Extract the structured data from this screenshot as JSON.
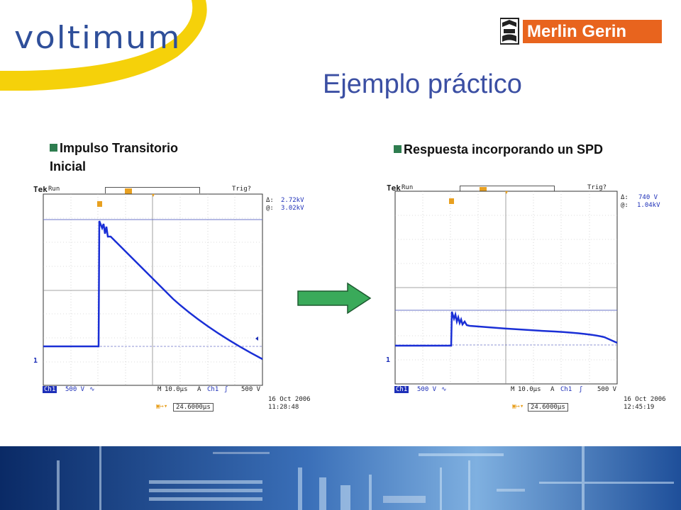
{
  "header": {
    "logo": {
      "name": "voltimum",
      "text": "voltimum"
    },
    "brand": {
      "name": "Merlin Gerin",
      "text": "Merlin Gerin"
    },
    "title": "Ejemplo práctico"
  },
  "panels": [
    {
      "label": "Impulso Transitorio Inicial",
      "scope": {
        "brand": "Tek",
        "status": "Run",
        "trig": "Trig?",
        "delta_label": "Δ:",
        "delta_value": "2.72kV",
        "at_label": "@:",
        "at_value": "3.02kV",
        "ch_tag": "Ch1",
        "ch_scale": "500 V",
        "coupling": "∿",
        "time_tag": "M",
        "time_scale": "10.0μs",
        "trig_tag": "A",
        "trig_ch": "Ch1",
        "trig_slope": "ʃ",
        "trig_level": "500 V",
        "pos_value": "24.6000μs",
        "date": "16 Oct  2006",
        "time": "11:28:48"
      }
    },
    {
      "label": "Respuesta incorporando un SPD",
      "scope": {
        "brand": "Tek",
        "status": "Run",
        "trig": "Trig?",
        "delta_label": "Δ:",
        "delta_value": "740 V",
        "at_label": "@:",
        "at_value": "1.04kV",
        "ch_tag": "Ch1",
        "ch_scale": "500 V",
        "coupling": "∿",
        "time_tag": "M",
        "time_scale": "10.0μs",
        "trig_tag": "A",
        "trig_ch": "Ch1",
        "trig_slope": "ʃ",
        "trig_level": "500 V",
        "pos_value": "24.6000μs",
        "date": "16 Oct  2006",
        "time": "12:45:19"
      }
    }
  ],
  "colors": {
    "title": "#3b4fa3",
    "logo_yellow": "#f5d10a",
    "brand_orange": "#e8641e",
    "trace": "#1a2fd6",
    "arrow": "#3aaa5a",
    "bullet": "#2e7d4f"
  },
  "icons": {
    "bullet": "square-bullet-icon",
    "arrow": "right-arrow-icon"
  }
}
